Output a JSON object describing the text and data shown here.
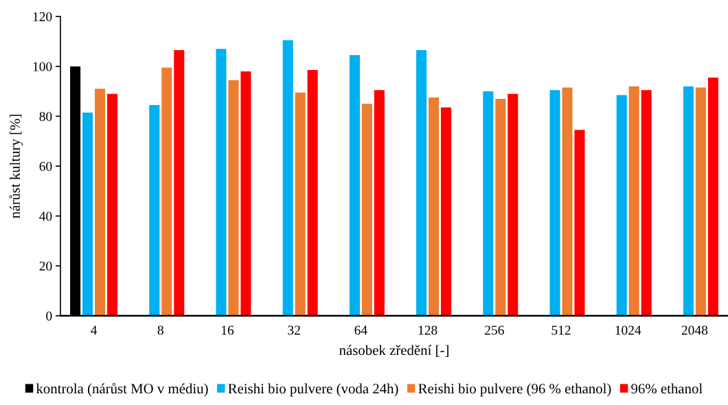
{
  "chart_data": {
    "type": "bar",
    "xlabel": "násobek zředění [-]",
    "ylabel": "nárůst kultury [%]",
    "categories": [
      "4",
      "8",
      "16",
      "32",
      "64",
      "128",
      "256",
      "512",
      "1024",
      "2048"
    ],
    "series": [
      {
        "name": "kontrola (nárůst MO v médiu)",
        "color": "#000000",
        "values": [
          100,
          null,
          null,
          null,
          null,
          null,
          null,
          null,
          null,
          null
        ]
      },
      {
        "name": "Reishi bio pulvere (voda 24h)",
        "color": "#00b0f0",
        "values": [
          81.5,
          84.5,
          107,
          110.5,
          104.5,
          106.5,
          90,
          90.5,
          88.5,
          92
        ]
      },
      {
        "name": "Reishi bio pulvere (96 % ethanol)",
        "color": "#ed7d31",
        "values": [
          91,
          99.5,
          94.5,
          89.5,
          85,
          87.5,
          87,
          91.5,
          92,
          91.5
        ]
      },
      {
        "name": "96% ethanol",
        "color": "#ff0000",
        "values": [
          89,
          106.5,
          98,
          98.5,
          90.5,
          83.5,
          89,
          74.5,
          90.5,
          95.5
        ]
      }
    ],
    "ylim": [
      0,
      120
    ],
    "yticks": [
      0,
      20,
      40,
      60,
      80,
      100,
      120
    ],
    "grid": false,
    "legend": "bottom"
  }
}
